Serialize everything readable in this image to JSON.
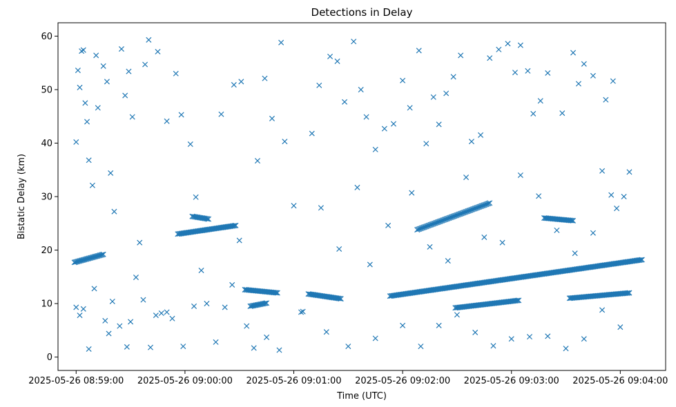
{
  "chart_data": {
    "type": "scatter",
    "title": "Detections in Delay",
    "xlabel": "Time (UTC)",
    "ylabel": "Bistatic Delay (km)",
    "marker": "x",
    "color": "#1f77b4",
    "grid": false,
    "legend": "none",
    "xlim": [
      "2025-05-26 08:58:50",
      "2025-05-26 09:04:25"
    ],
    "ylim": [
      -2.5,
      62.5
    ],
    "x_ticks": [
      "2025-05-26 08:59:00",
      "2025-05-26 09:00:00",
      "2025-05-26 09:01:00",
      "2025-05-26 09:02:00",
      "2025-05-26 09:03:00",
      "2025-05-26 09:04:00"
    ],
    "y_ticks": [
      0,
      10,
      20,
      30,
      40,
      50,
      60
    ],
    "tracks": [
      {
        "from": "2025-05-26 08:58:59",
        "to": "2025-05-26 08:59:15",
        "delay_start": 17.7,
        "delay_end": 19.2
      },
      {
        "from": "2025-05-26 08:59:56",
        "to": "2025-05-26 09:00:28",
        "delay_start": 23.0,
        "delay_end": 24.6
      },
      {
        "from": "2025-05-26 09:00:04",
        "to": "2025-05-26 09:00:13",
        "delay_start": 26.3,
        "delay_end": 25.8
      },
      {
        "from": "2025-05-26 09:00:33",
        "to": "2025-05-26 09:00:51",
        "delay_start": 12.6,
        "delay_end": 12.0
      },
      {
        "from": "2025-05-26 09:00:36",
        "to": "2025-05-26 09:00:45",
        "delay_start": 9.5,
        "delay_end": 10.1
      },
      {
        "from": "2025-05-26 09:01:08",
        "to": "2025-05-26 09:01:26",
        "delay_start": 11.8,
        "delay_end": 10.9
      },
      {
        "from": "2025-05-26 09:01:53",
        "to": "2025-05-26 09:04:12",
        "delay_start": 11.4,
        "delay_end": 18.2
      },
      {
        "from": "2025-05-26 09:02:08",
        "to": "2025-05-26 09:02:48",
        "delay_start": 23.8,
        "delay_end": 28.8
      },
      {
        "from": "2025-05-26 09:02:29",
        "to": "2025-05-26 09:03:04",
        "delay_start": 9.2,
        "delay_end": 10.6
      },
      {
        "from": "2025-05-26 09:03:18",
        "to": "2025-05-26 09:03:34",
        "delay_start": 26.0,
        "delay_end": 25.5
      },
      {
        "from": "2025-05-26 09:03:32",
        "to": "2025-05-26 09:04:05",
        "delay_start": 11.0,
        "delay_end": 12.0
      }
    ],
    "scattered_detections": [
      [
        "2025-05-26 08:59:00",
        40.2
      ],
      [
        "2025-05-26 08:59:01",
        53.6
      ],
      [
        "2025-05-26 08:59:02",
        50.4
      ],
      [
        "2025-05-26 08:59:03",
        57.2
      ],
      [
        "2025-05-26 08:59:04",
        57.4
      ],
      [
        "2025-05-26 08:59:05",
        47.5
      ],
      [
        "2025-05-26 08:59:06",
        44.0
      ],
      [
        "2025-05-26 08:59:07",
        36.8
      ],
      [
        "2025-05-26 08:59:09",
        32.1
      ],
      [
        "2025-05-26 08:59:11",
        56.4
      ],
      [
        "2025-05-26 08:59:12",
        46.6
      ],
      [
        "2025-05-26 08:59:15",
        54.4
      ],
      [
        "2025-05-26 08:59:17",
        51.5
      ],
      [
        "2025-05-26 08:59:19",
        34.4
      ],
      [
        "2025-05-26 08:59:21",
        27.2
      ],
      [
        "2025-05-26 08:59:25",
        57.6
      ],
      [
        "2025-05-26 08:59:27",
        48.9
      ],
      [
        "2025-05-26 08:59:29",
        53.4
      ],
      [
        "2025-05-26 08:59:31",
        44.9
      ],
      [
        "2025-05-26 08:59:35",
        21.4
      ],
      [
        "2025-05-26 08:59:38",
        54.7
      ],
      [
        "2025-05-26 08:59:40",
        59.3
      ],
      [
        "2025-05-26 08:59:45",
        57.1
      ],
      [
        "2025-05-26 08:59:50",
        44.1
      ],
      [
        "2025-05-26 08:59:55",
        53.0
      ],
      [
        "2025-05-26 08:59:58",
        45.3
      ],
      [
        "2025-05-26 09:00:03",
        39.8
      ],
      [
        "2025-05-26 09:00:06",
        29.9
      ],
      [
        "2025-05-26 08:59:00",
        9.3
      ],
      [
        "2025-05-26 08:59:02",
        7.8
      ],
      [
        "2025-05-26 08:59:04",
        9.0
      ],
      [
        "2025-05-26 08:59:07",
        1.5
      ],
      [
        "2025-05-26 08:59:10",
        12.8
      ],
      [
        "2025-05-26 08:59:16",
        6.8
      ],
      [
        "2025-05-26 08:59:18",
        4.4
      ],
      [
        "2025-05-26 08:59:20",
        10.4
      ],
      [
        "2025-05-26 08:59:24",
        5.8
      ],
      [
        "2025-05-26 08:59:28",
        1.9
      ],
      [
        "2025-05-26 08:59:30",
        6.6
      ],
      [
        "2025-05-26 08:59:33",
        14.9
      ],
      [
        "2025-05-26 08:59:37",
        10.7
      ],
      [
        "2025-05-26 08:59:41",
        1.8
      ],
      [
        "2025-05-26 08:59:44",
        7.8
      ],
      [
        "2025-05-26 08:59:47",
        8.2
      ],
      [
        "2025-05-26 08:59:50",
        8.4
      ],
      [
        "2025-05-26 08:59:53",
        7.2
      ],
      [
        "2025-05-26 08:59:59",
        2.0
      ],
      [
        "2025-05-26 09:00:05",
        9.5
      ],
      [
        "2025-05-26 09:00:09",
        16.2
      ],
      [
        "2025-05-26 09:00:12",
        10.0
      ],
      [
        "2025-05-26 09:00:17",
        2.8
      ],
      [
        "2025-05-26 09:00:22",
        9.3
      ],
      [
        "2025-05-26 09:00:26",
        13.5
      ],
      [
        "2025-05-26 09:00:30",
        21.8
      ],
      [
        "2025-05-26 09:00:34",
        5.8
      ],
      [
        "2025-05-26 09:00:38",
        1.7
      ],
      [
        "2025-05-26 09:00:45",
        3.7
      ],
      [
        "2025-05-26 09:00:52",
        1.3
      ],
      [
        "2025-05-26 09:01:00",
        28.3
      ],
      [
        "2025-05-26 09:01:04",
        8.4
      ],
      [
        "2025-05-26 09:01:10",
        41.8
      ],
      [
        "2025-05-26 09:01:14",
        50.8
      ],
      [
        "2025-05-26 09:01:20",
        56.2
      ],
      [
        "2025-05-26 09:01:24",
        55.3
      ],
      [
        "2025-05-26 09:01:28",
        47.7
      ],
      [
        "2025-05-26 09:01:33",
        59.0
      ],
      [
        "2025-05-26 09:01:37",
        50.0
      ],
      [
        "2025-05-26 09:01:40",
        44.9
      ],
      [
        "2025-05-26 09:01:45",
        38.8
      ],
      [
        "2025-05-26 09:01:50",
        42.7
      ],
      [
        "2025-05-26 09:01:55",
        43.6
      ],
      [
        "2025-05-26 09:02:00",
        51.7
      ],
      [
        "2025-05-26 09:02:04",
        46.6
      ],
      [
        "2025-05-26 09:02:09",
        57.3
      ],
      [
        "2025-05-26 09:02:13",
        39.9
      ],
      [
        "2025-05-26 09:02:17",
        48.6
      ],
      [
        "2025-05-26 09:02:20",
        43.5
      ],
      [
        "2025-05-26 09:02:24",
        49.3
      ],
      [
        "2025-05-26 09:02:28",
        52.4
      ],
      [
        "2025-05-26 09:02:32",
        56.4
      ],
      [
        "2025-05-26 09:02:38",
        40.3
      ],
      [
        "2025-05-26 09:02:43",
        41.5
      ],
      [
        "2025-05-26 09:02:48",
        55.9
      ],
      [
        "2025-05-26 09:02:53",
        57.5
      ],
      [
        "2025-05-26 09:02:58",
        58.6
      ],
      [
        "2025-05-26 09:03:02",
        53.2
      ],
      [
        "2025-05-26 09:03:05",
        58.3
      ],
      [
        "2025-05-26 09:03:09",
        53.5
      ],
      [
        "2025-05-26 09:03:12",
        45.5
      ],
      [
        "2025-05-26 09:03:16",
        47.9
      ],
      [
        "2025-05-26 09:03:20",
        53.1
      ],
      [
        "2025-05-26 09:03:28",
        45.6
      ],
      [
        "2025-05-26 09:03:34",
        56.9
      ],
      [
        "2025-05-26 09:03:37",
        51.1
      ],
      [
        "2025-05-26 09:03:40",
        54.8
      ],
      [
        "2025-05-26 09:03:45",
        52.6
      ],
      [
        "2025-05-26 09:03:50",
        34.8
      ],
      [
        "2025-05-26 09:03:55",
        30.3
      ],
      [
        "2025-05-26 09:03:58",
        27.8
      ],
      [
        "2025-05-26 09:01:15",
        27.9
      ],
      [
        "2025-05-26 09:01:25",
        20.2
      ],
      [
        "2025-05-26 09:01:35",
        31.7
      ],
      [
        "2025-05-26 09:01:42",
        17.3
      ],
      [
        "2025-05-26 09:01:52",
        24.6
      ],
      [
        "2025-05-26 09:02:05",
        30.7
      ],
      [
        "2025-05-26 09:02:15",
        20.6
      ],
      [
        "2025-05-26 09:02:25",
        18.0
      ],
      [
        "2025-05-26 09:02:35",
        33.6
      ],
      [
        "2025-05-26 09:02:45",
        22.4
      ],
      [
        "2025-05-26 09:02:55",
        21.4
      ],
      [
        "2025-05-26 09:03:05",
        34.0
      ],
      [
        "2025-05-26 09:03:15",
        30.1
      ],
      [
        "2025-05-26 09:03:25",
        23.7
      ],
      [
        "2025-05-26 09:03:35",
        19.4
      ],
      [
        "2025-05-26 09:03:45",
        23.2
      ],
      [
        "2025-05-26 09:01:05",
        8.5
      ],
      [
        "2025-05-26 09:01:18",
        4.7
      ],
      [
        "2025-05-26 09:01:30",
        2.0
      ],
      [
        "2025-05-26 09:01:45",
        3.5
      ],
      [
        "2025-05-26 09:02:00",
        5.9
      ],
      [
        "2025-05-26 09:02:10",
        2.0
      ],
      [
        "2025-05-26 09:02:20",
        5.9
      ],
      [
        "2025-05-26 09:02:30",
        7.9
      ],
      [
        "2025-05-26 09:02:40",
        4.6
      ],
      [
        "2025-05-26 09:02:50",
        2.1
      ],
      [
        "2025-05-26 09:03:00",
        3.4
      ],
      [
        "2025-05-26 09:03:10",
        3.8
      ],
      [
        "2025-05-26 09:03:20",
        3.9
      ],
      [
        "2025-05-26 09:03:30",
        1.6
      ],
      [
        "2025-05-26 09:03:40",
        3.4
      ],
      [
        "2025-05-26 09:03:50",
        8.8
      ],
      [
        "2025-05-26 09:04:00",
        5.6
      ],
      [
        "2025-05-26 09:00:40",
        36.7
      ],
      [
        "2025-05-26 09:00:48",
        44.6
      ],
      [
        "2025-05-26 09:00:55",
        40.3
      ],
      [
        "2025-05-26 09:00:20",
        45.4
      ],
      [
        "2025-05-26 09:00:27",
        50.9
      ],
      [
        "2025-05-26 09:00:31",
        51.5
      ],
      [
        "2025-05-26 09:00:44",
        52.1
      ],
      [
        "2025-05-26 09:00:53",
        58.8
      ],
      [
        "2025-05-26 09:04:05",
        34.6
      ],
      [
        "2025-05-26 09:04:02",
        30.0
      ],
      [
        "2025-05-26 09:03:56",
        51.6
      ],
      [
        "2025-05-26 09:03:52",
        48.1
      ]
    ]
  }
}
